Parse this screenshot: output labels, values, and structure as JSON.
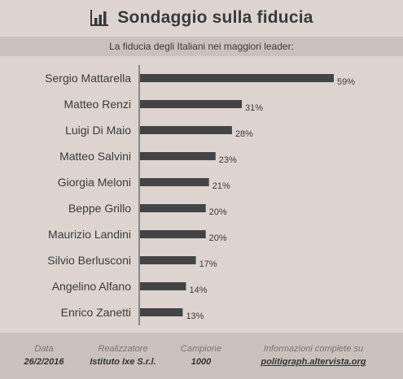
{
  "header": {
    "title": "Sondaggio sulla fiducia",
    "icon": "bar-chart-icon"
  },
  "subtitle": "La fiducia degli Italiani nei maggiori leader:",
  "chart_data": {
    "type": "bar",
    "orientation": "horizontal",
    "categories": [
      "Sergio Mattarella",
      "Matteo Renzi",
      "Luigi Di Maio",
      "Matteo Salvini",
      "Giorgia Meloni",
      "Beppe Grillo",
      "Maurizio Landini",
      "Silvio Berlusconi",
      "Angelino Alfano",
      "Enrico Zanetti"
    ],
    "values": [
      59,
      31,
      28,
      23,
      21,
      20,
      20,
      17,
      14,
      13
    ],
    "value_labels": [
      "59%",
      "31%",
      "28%",
      "23%",
      "21%",
      "20%",
      "20%",
      "17%",
      "14%",
      "13%"
    ],
    "unit": "%",
    "bar_color": "#444444",
    "axis_color": "#555555"
  },
  "footer": {
    "date_label": "Data",
    "date_value": "26/2/2016",
    "maker_label": "Realizzatore",
    "maker_value": "Istituto Ixe S.r.l.",
    "sample_label": "Campione",
    "sample_value": "1000",
    "info_label": "Informazioni complete su",
    "info_value": "politigraph.altervista.org"
  },
  "colors": {
    "background": "#ddd4d0",
    "band": "#cac1bd",
    "text": "#3a3a3a",
    "muted": "#7a7472"
  }
}
